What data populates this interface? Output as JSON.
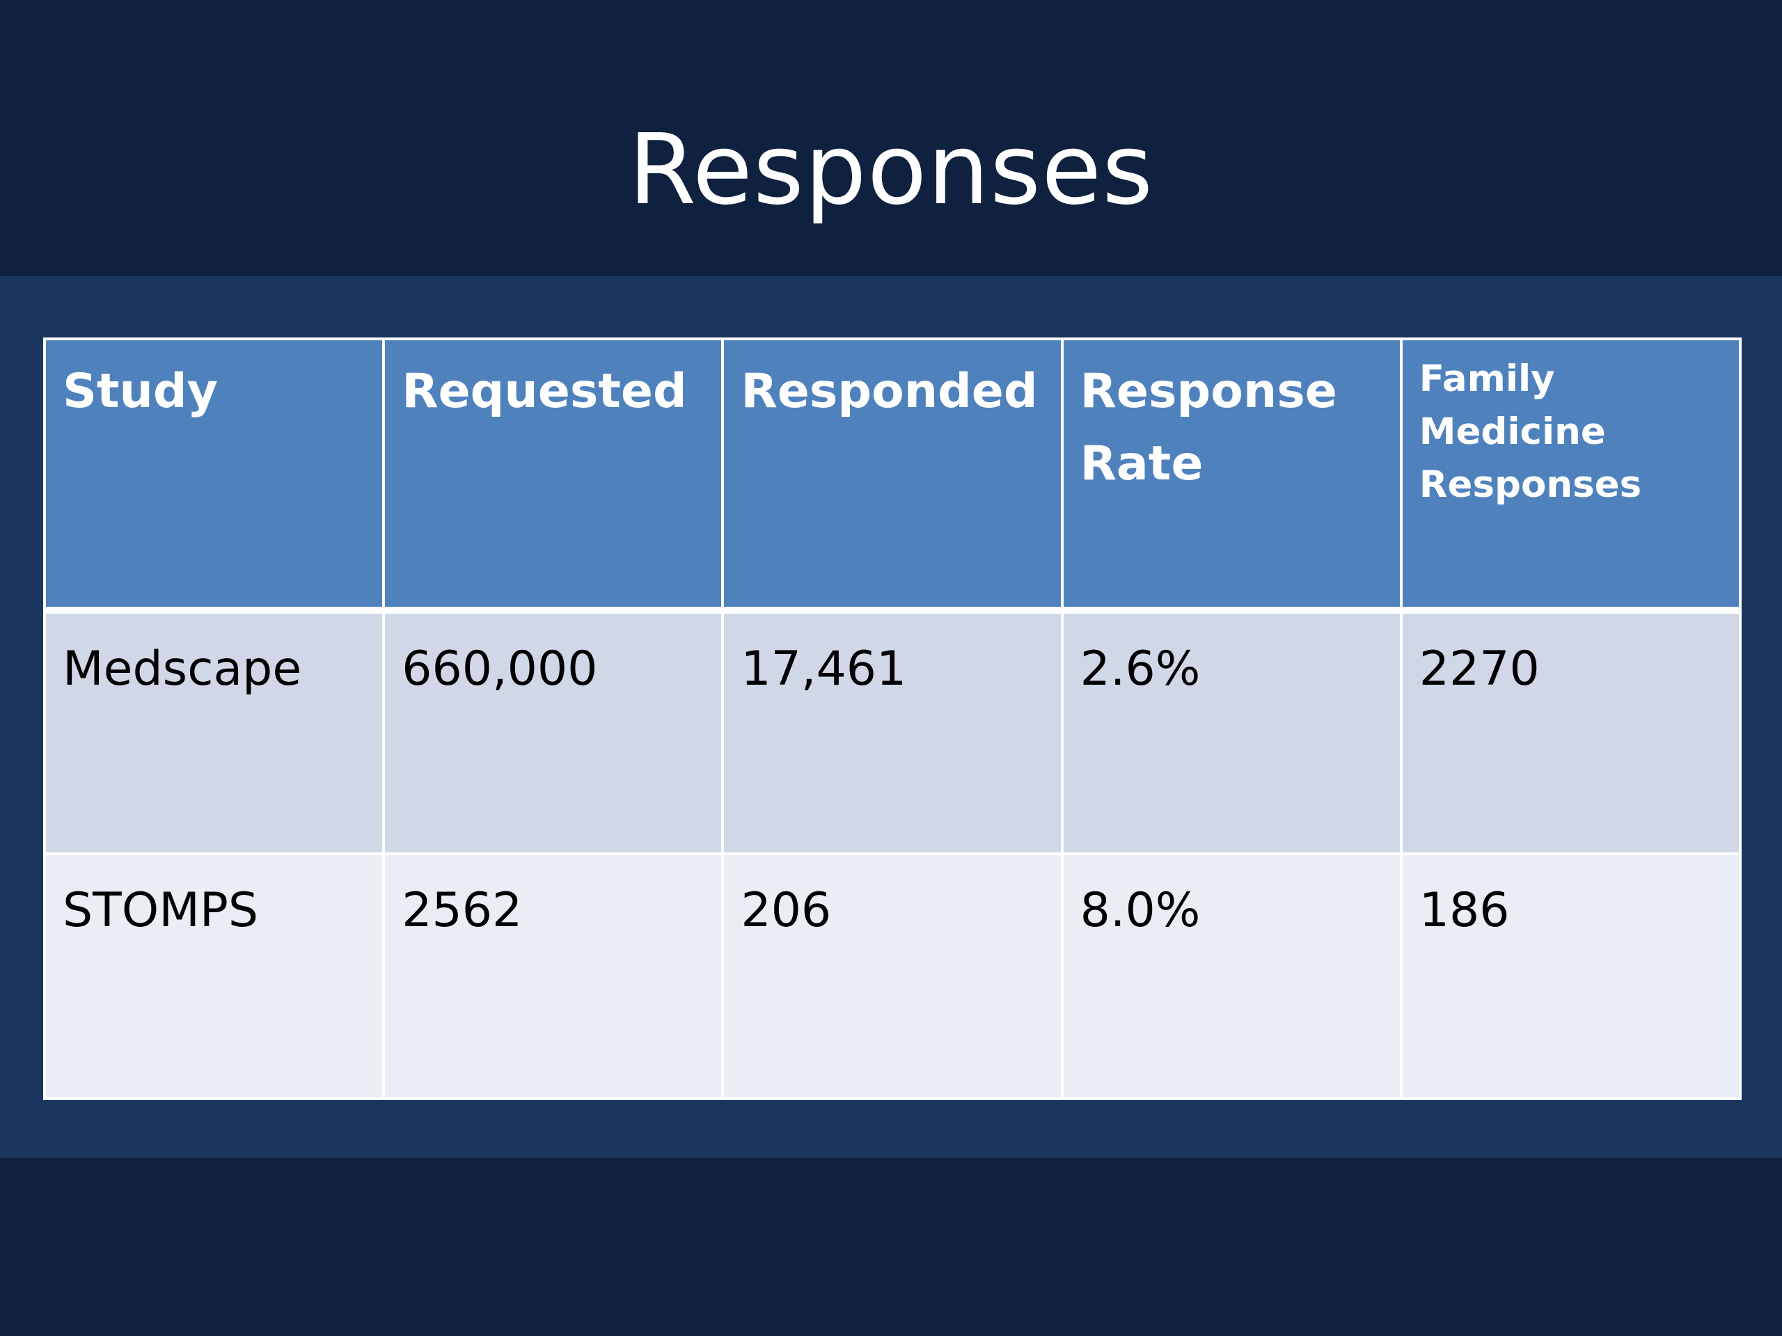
{
  "slide": {
    "title": "Responses"
  },
  "colors": {
    "background": "#0f213e",
    "band": "#1a365f",
    "header_fill": "#4f81bd",
    "row_fill_1": "#d0d8e8",
    "row_fill_2": "#e9edf4",
    "text_light": "#ffffff",
    "text_dark": "#000000"
  },
  "table": {
    "headers": [
      "Study",
      "Requested",
      "Responded",
      "Response Rate",
      "Family Medicine Responses"
    ],
    "rows": [
      [
        "Medscape",
        "660,000",
        "17,461",
        "2.6%",
        "2270"
      ],
      [
        "STOMPS",
        "2562",
        "206",
        "8.0%",
        "186"
      ]
    ]
  }
}
